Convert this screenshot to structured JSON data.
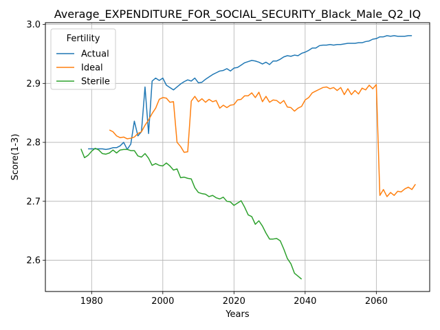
{
  "chart_data": {
    "type": "line",
    "title": "Average_EXPENDITURE_FOR_SOCIAL_SECURITY_Black_Male_Q2_IQ",
    "xlabel": "Years",
    "ylabel": "Score(1-3)",
    "xlim": [
      1967,
      2075
    ],
    "ylim": [
      2.547,
      3.003
    ],
    "xticks": [
      1980,
      2000,
      2020,
      2040,
      2060
    ],
    "yticks": [
      2.6,
      2.7,
      2.8,
      2.9,
      3.0
    ],
    "xtick_labels": [
      "1980",
      "2000",
      "2020",
      "2040",
      "2060"
    ],
    "ytick_labels": [
      "2.6",
      "2.7",
      "2.8",
      "2.9",
      "3.0"
    ],
    "grid": true,
    "legend": {
      "title": "Fertility",
      "placement": "top-left"
    },
    "series": [
      {
        "name": "Actual",
        "color": "#1f77b4",
        "points": [
          [
            1979,
            2.789
          ],
          [
            1980,
            2.789
          ],
          [
            1981,
            2.789
          ],
          [
            1982,
            2.789
          ],
          [
            1983,
            2.789
          ],
          [
            1984,
            2.788
          ],
          [
            1985,
            2.789
          ],
          [
            1986,
            2.791
          ],
          [
            1987,
            2.791
          ],
          [
            1988,
            2.794
          ],
          [
            1989,
            2.8
          ],
          [
            1990,
            2.788
          ],
          [
            1991,
            2.797
          ],
          [
            1992,
            2.836
          ],
          [
            1993,
            2.811
          ],
          [
            1994,
            2.818
          ],
          [
            1995,
            2.894
          ],
          [
            1996,
            2.815
          ],
          [
            1997,
            2.904
          ],
          [
            1998,
            2.909
          ],
          [
            1999,
            2.905
          ],
          [
            2000,
            2.909
          ],
          [
            2001,
            2.897
          ],
          [
            2002,
            2.893
          ],
          [
            2003,
            2.889
          ],
          [
            2004,
            2.894
          ],
          [
            2005,
            2.899
          ],
          [
            2006,
            2.903
          ],
          [
            2007,
            2.906
          ],
          [
            2008,
            2.904
          ],
          [
            2009,
            2.909
          ],
          [
            2010,
            2.901
          ],
          [
            2011,
            2.902
          ],
          [
            2012,
            2.907
          ],
          [
            2013,
            2.911
          ],
          [
            2014,
            2.915
          ],
          [
            2015,
            2.918
          ],
          [
            2016,
            2.921
          ],
          [
            2017,
            2.922
          ],
          [
            2018,
            2.925
          ],
          [
            2019,
            2.921
          ],
          [
            2020,
            2.926
          ],
          [
            2021,
            2.927
          ],
          [
            2022,
            2.931
          ],
          [
            2023,
            2.935
          ],
          [
            2024,
            2.937
          ],
          [
            2025,
            2.939
          ],
          [
            2026,
            2.938
          ],
          [
            2027,
            2.936
          ],
          [
            2028,
            2.933
          ],
          [
            2029,
            2.936
          ],
          [
            2030,
            2.932
          ],
          [
            2031,
            2.938
          ],
          [
            2032,
            2.938
          ],
          [
            2033,
            2.941
          ],
          [
            2034,
            2.945
          ],
          [
            2035,
            2.947
          ],
          [
            2036,
            2.946
          ],
          [
            2037,
            2.948
          ],
          [
            2038,
            2.947
          ],
          [
            2039,
            2.951
          ],
          [
            2040,
            2.953
          ],
          [
            2041,
            2.956
          ],
          [
            2042,
            2.96
          ],
          [
            2043,
            2.96
          ],
          [
            2044,
            2.964
          ],
          [
            2045,
            2.965
          ],
          [
            2046,
            2.965
          ],
          [
            2047,
            2.966
          ],
          [
            2048,
            2.965
          ],
          [
            2049,
            2.966
          ],
          [
            2050,
            2.966
          ],
          [
            2051,
            2.967
          ],
          [
            2052,
            2.968
          ],
          [
            2053,
            2.968
          ],
          [
            2054,
            2.968
          ],
          [
            2055,
            2.969
          ],
          [
            2056,
            2.969
          ],
          [
            2057,
            2.971
          ],
          [
            2058,
            2.972
          ],
          [
            2059,
            2.975
          ],
          [
            2060,
            2.976
          ],
          [
            2061,
            2.979
          ],
          [
            2062,
            2.979
          ],
          [
            2063,
            2.981
          ],
          [
            2064,
            2.98
          ],
          [
            2065,
            2.981
          ],
          [
            2066,
            2.98
          ],
          [
            2067,
            2.98
          ],
          [
            2068,
            2.98
          ],
          [
            2069,
            2.981
          ],
          [
            2070,
            2.981
          ]
        ]
      },
      {
        "name": "Ideal",
        "color": "#ff7f0e",
        "points": [
          [
            1985,
            2.821
          ],
          [
            1986,
            2.818
          ],
          [
            1987,
            2.811
          ],
          [
            1988,
            2.808
          ],
          [
            1989,
            2.809
          ],
          [
            1990,
            2.806
          ],
          [
            1991,
            2.807
          ],
          [
            1992,
            2.809
          ],
          [
            1993,
            2.815
          ],
          [
            1994,
            2.818
          ],
          [
            1995,
            2.829
          ],
          [
            1996,
            2.838
          ],
          [
            1997,
            2.849
          ],
          [
            1998,
            2.858
          ],
          [
            1999,
            2.873
          ],
          [
            2000,
            2.876
          ],
          [
            2001,
            2.875
          ],
          [
            2002,
            2.868
          ],
          [
            2003,
            2.869
          ],
          [
            2004,
            2.8
          ],
          [
            2005,
            2.793
          ],
          [
            2006,
            2.783
          ],
          [
            2007,
            2.784
          ],
          [
            2008,
            2.87
          ],
          [
            2009,
            2.878
          ],
          [
            2010,
            2.869
          ],
          [
            2011,
            2.874
          ],
          [
            2012,
            2.868
          ],
          [
            2013,
            2.873
          ],
          [
            2014,
            2.869
          ],
          [
            2015,
            2.871
          ],
          [
            2016,
            2.858
          ],
          [
            2017,
            2.863
          ],
          [
            2018,
            2.859
          ],
          [
            2019,
            2.863
          ],
          [
            2020,
            2.864
          ],
          [
            2021,
            2.872
          ],
          [
            2022,
            2.873
          ],
          [
            2023,
            2.879
          ],
          [
            2024,
            2.879
          ],
          [
            2025,
            2.884
          ],
          [
            2026,
            2.876
          ],
          [
            2027,
            2.885
          ],
          [
            2028,
            2.869
          ],
          [
            2029,
            2.878
          ],
          [
            2030,
            2.868
          ],
          [
            2031,
            2.872
          ],
          [
            2032,
            2.871
          ],
          [
            2033,
            2.866
          ],
          [
            2034,
            2.871
          ],
          [
            2035,
            2.86
          ],
          [
            2036,
            2.859
          ],
          [
            2037,
            2.853
          ],
          [
            2038,
            2.858
          ],
          [
            2039,
            2.861
          ],
          [
            2040,
            2.872
          ],
          [
            2041,
            2.876
          ],
          [
            2042,
            2.884
          ],
          [
            2043,
            2.887
          ],
          [
            2044,
            2.89
          ],
          [
            2045,
            2.893
          ],
          [
            2046,
            2.894
          ],
          [
            2047,
            2.891
          ],
          [
            2048,
            2.893
          ],
          [
            2049,
            2.888
          ],
          [
            2050,
            2.893
          ],
          [
            2051,
            2.881
          ],
          [
            2052,
            2.891
          ],
          [
            2053,
            2.881
          ],
          [
            2054,
            2.888
          ],
          [
            2055,
            2.882
          ],
          [
            2056,
            2.892
          ],
          [
            2057,
            2.889
          ],
          [
            2058,
            2.897
          ],
          [
            2059,
            2.891
          ],
          [
            2060,
            2.898
          ],
          [
            2061,
            2.71
          ],
          [
            2062,
            2.72
          ],
          [
            2063,
            2.708
          ],
          [
            2064,
            2.715
          ],
          [
            2065,
            2.71
          ],
          [
            2066,
            2.717
          ],
          [
            2067,
            2.716
          ],
          [
            2068,
            2.721
          ],
          [
            2069,
            2.724
          ],
          [
            2070,
            2.72
          ],
          [
            2071,
            2.729
          ]
        ]
      },
      {
        "name": "Sterile",
        "color": "#2ca02c",
        "points": [
          [
            1977,
            2.789
          ],
          [
            1978,
            2.774
          ],
          [
            1979,
            2.778
          ],
          [
            1980,
            2.785
          ],
          [
            1981,
            2.79
          ],
          [
            1982,
            2.787
          ],
          [
            1983,
            2.781
          ],
          [
            1984,
            2.78
          ],
          [
            1985,
            2.782
          ],
          [
            1986,
            2.787
          ],
          [
            1987,
            2.782
          ],
          [
            1988,
            2.787
          ],
          [
            1989,
            2.788
          ],
          [
            1990,
            2.788
          ],
          [
            1991,
            2.786
          ],
          [
            1992,
            2.786
          ],
          [
            1993,
            2.777
          ],
          [
            1994,
            2.775
          ],
          [
            1995,
            2.781
          ],
          [
            1996,
            2.773
          ],
          [
            1997,
            2.761
          ],
          [
            1998,
            2.764
          ],
          [
            1999,
            2.761
          ],
          [
            2000,
            2.76
          ],
          [
            2001,
            2.765
          ],
          [
            2002,
            2.76
          ],
          [
            2003,
            2.753
          ],
          [
            2004,
            2.755
          ],
          [
            2005,
            2.74
          ],
          [
            2006,
            2.741
          ],
          [
            2007,
            2.739
          ],
          [
            2008,
            2.738
          ],
          [
            2009,
            2.723
          ],
          [
            2010,
            2.715
          ],
          [
            2011,
            2.713
          ],
          [
            2012,
            2.712
          ],
          [
            2013,
            2.708
          ],
          [
            2014,
            2.71
          ],
          [
            2015,
            2.706
          ],
          [
            2016,
            2.704
          ],
          [
            2017,
            2.707
          ],
          [
            2018,
            2.7
          ],
          [
            2019,
            2.699
          ],
          [
            2020,
            2.693
          ],
          [
            2021,
            2.697
          ],
          [
            2022,
            2.701
          ],
          [
            2023,
            2.69
          ],
          [
            2024,
            2.677
          ],
          [
            2025,
            2.674
          ],
          [
            2026,
            2.661
          ],
          [
            2027,
            2.667
          ],
          [
            2028,
            2.658
          ],
          [
            2029,
            2.646
          ],
          [
            2030,
            2.636
          ],
          [
            2031,
            2.636
          ],
          [
            2032,
            2.637
          ],
          [
            2033,
            2.633
          ],
          [
            2034,
            2.619
          ],
          [
            2035,
            2.603
          ],
          [
            2036,
            2.594
          ],
          [
            2037,
            2.578
          ],
          [
            2038,
            2.573
          ],
          [
            2039,
            2.568
          ]
        ]
      }
    ]
  }
}
